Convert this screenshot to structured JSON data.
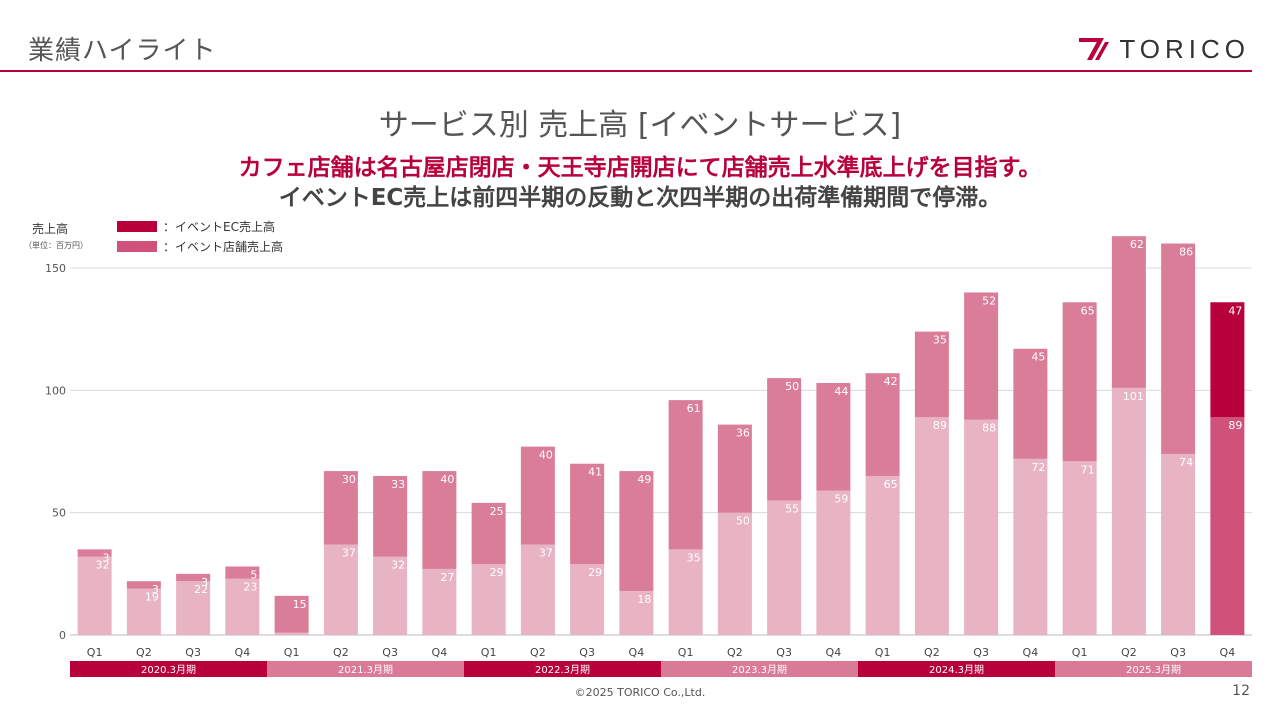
{
  "header": {
    "title": "業績ハイライト",
    "logo_text": "TORICO",
    "brand_color": "#b8003a"
  },
  "slide": {
    "title": "サービス別 売上高 [イベントサービス]",
    "subtitle_line1": "カフェ店舗は名古屋店閉店・天王寺店開店にて店舗売上水準底上げを目指す。",
    "subtitle_line2": "イベントEC売上は前四半期の反動と次四半期の出荷準備期間で停滞。",
    "footer": "©2025 TORICO Co.,Ltd.",
    "page_number": "12"
  },
  "chart_data": {
    "type": "bar",
    "stacked": true,
    "ylabel": "売上高",
    "unit_note": "（単位：百万円）",
    "ylim": [
      0,
      150
    ],
    "yticks": [
      0,
      50,
      100,
      150
    ],
    "grid": true,
    "legend": [
      {
        "label": "：イベントEC売上高",
        "color": "#b8003a"
      },
      {
        "label": "：イベント店舗売上高",
        "color": "#d0527a"
      }
    ],
    "categories": [
      "Q1",
      "Q2",
      "Q3",
      "Q4",
      "Q1",
      "Q2",
      "Q3",
      "Q4",
      "Q1",
      "Q2",
      "Q3",
      "Q4",
      "Q1",
      "Q2",
      "Q3",
      "Q4",
      "Q1",
      "Q2",
      "Q3",
      "Q4",
      "Q1",
      "Q2",
      "Q3",
      "Q4"
    ],
    "groups": [
      {
        "label": "2020.3月期",
        "color": "#b8003a"
      },
      {
        "label": "2021.3月期",
        "color": "#d97a96"
      },
      {
        "label": "2022.3月期",
        "color": "#b8003a"
      },
      {
        "label": "2023.3月期",
        "color": "#d97a96"
      },
      {
        "label": "2024.3月期",
        "color": "#b8003a"
      },
      {
        "label": "2025.3月期",
        "color": "#d97a96"
      }
    ],
    "series": [
      {
        "role": "lower",
        "values": [
          32,
          19,
          22,
          23,
          1,
          37,
          32,
          27,
          29,
          37,
          29,
          18,
          35,
          50,
          55,
          59,
          65,
          89,
          88,
          72,
          71,
          101,
          74,
          89
        ],
        "color_default": "#e8b3c3",
        "color_highlight": "#d0527a"
      },
      {
        "role": "upper",
        "values": [
          3,
          3,
          3,
          5,
          15,
          30,
          33,
          40,
          25,
          40,
          41,
          49,
          61,
          36,
          50,
          44,
          42,
          35,
          52,
          45,
          65,
          62,
          86,
          47
        ],
        "color_default": "#d97d98",
        "color_highlight": "#b8003a"
      }
    ],
    "highlight_index": 23,
    "value_label_color": "#ffffff",
    "grid_color": "#d9d9d9"
  }
}
